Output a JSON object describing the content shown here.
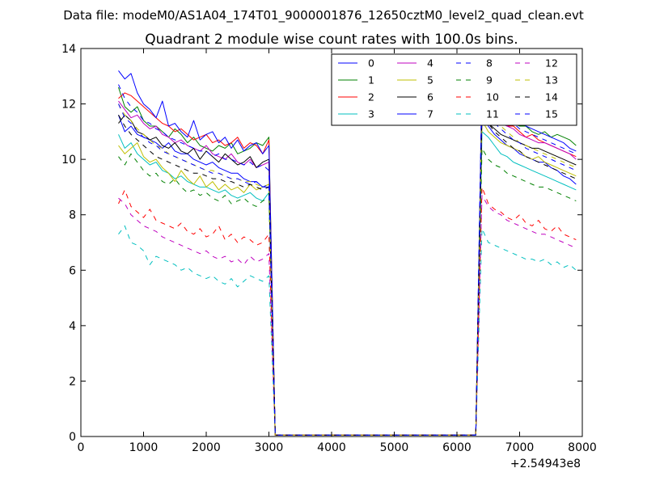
{
  "chart_data": {
    "type": "line",
    "suptitle": "Data file: modeM0/AS1A04_174T01_9000001876_12650cztM0_level2_quad_clean.evt",
    "title": "Quadrant 2 module wise count rates with 100.0s bins.",
    "xlabel": "",
    "ylabel": "",
    "xlim": [
      0,
      8000
    ],
    "ylim": [
      0,
      14
    ],
    "x_offset_label": "+2.54943e8",
    "xticks": [
      0,
      1000,
      2000,
      3000,
      4000,
      5000,
      6000,
      7000,
      8000
    ],
    "xtick_labels": [
      "0",
      "1000",
      "2000",
      "3000",
      "4000",
      "5000",
      "6000",
      "7000",
      "8000"
    ],
    "yticks": [
      0,
      2,
      4,
      6,
      8,
      10,
      12,
      14
    ],
    "ytick_labels": [
      "0",
      "2",
      "4",
      "6",
      "8",
      "10",
      "12",
      "14"
    ],
    "grid": false,
    "legend_position": "top-right",
    "x_segments": [
      {
        "start": 600,
        "end": 3000
      },
      {
        "start": 3100,
        "end": 6300
      },
      {
        "start": 6400,
        "end": 7900
      }
    ],
    "series": [
      {
        "name": "0",
        "color": "#0000ff",
        "dash": "solid",
        "seg1": [
          11.6,
          11.0,
          11.2,
          10.9,
          10.8,
          10.7,
          10.6,
          10.4,
          10.6,
          10.3,
          10.2,
          10.2,
          10.0,
          9.9,
          9.8,
          9.9,
          9.7,
          9.6,
          9.5,
          9.5,
          9.3,
          9.2,
          9.2,
          9.0,
          9.0
        ],
        "drop": 0.05,
        "seg3": [
          11.8,
          11.2,
          10.9,
          10.7,
          10.5,
          10.4,
          10.2,
          10.1,
          10.0,
          9.9,
          9.9,
          9.7,
          9.6,
          9.4,
          9.3,
          9.1
        ]
      },
      {
        "name": "1",
        "color": "#008000",
        "dash": "solid",
        "seg1": [
          12.6,
          11.9,
          11.7,
          11.9,
          11.4,
          11.2,
          11.2,
          11.0,
          10.8,
          11.1,
          10.9,
          10.6,
          10.8,
          10.5,
          10.4,
          10.3,
          10.5,
          10.4,
          10.6,
          10.2,
          10.3,
          10.4,
          10.6,
          10.5,
          10.8
        ],
        "drop": 0.05,
        "seg3": [
          12.5,
          12.0,
          11.8,
          11.6,
          11.4,
          11.3,
          11.2,
          11.2,
          11.0,
          10.9,
          11.0,
          10.8,
          10.9,
          10.8,
          10.7,
          10.5
        ]
      },
      {
        "name": "2",
        "color": "#ff0000",
        "dash": "solid",
        "seg1": [
          12.2,
          12.4,
          12.3,
          12.1,
          11.9,
          11.7,
          11.5,
          11.3,
          11.2,
          11.0,
          11.1,
          10.9,
          10.7,
          10.8,
          10.9,
          10.6,
          10.7,
          10.5,
          10.6,
          10.8,
          10.4,
          10.6,
          10.5,
          10.2,
          10.7
        ],
        "drop": 0.05,
        "seg3": [
          12.3,
          11.8,
          11.6,
          11.5,
          11.2,
          11.2,
          11.0,
          10.8,
          10.9,
          10.7,
          10.6,
          10.5,
          10.4,
          10.3,
          10.2,
          10.1
        ]
      },
      {
        "name": "3",
        "color": "#00bfbf",
        "dash": "solid",
        "seg1": [
          10.9,
          10.4,
          10.6,
          10.2,
          10.0,
          9.8,
          9.9,
          9.6,
          9.5,
          9.3,
          9.4,
          9.2,
          9.1,
          9.0,
          9.0,
          8.9,
          8.8,
          8.9,
          8.7,
          8.6,
          8.7,
          8.8,
          8.6,
          8.5,
          8.8
        ],
        "drop": 0.05,
        "seg3": [
          11.0,
          10.8,
          10.5,
          10.2,
          10.1,
          9.9,
          9.8,
          9.7,
          9.6,
          9.5,
          9.4,
          9.3,
          9.2,
          9.1,
          9.0,
          8.9
        ]
      },
      {
        "name": "4",
        "color": "#bf00bf",
        "dash": "solid",
        "seg1": [
          12.1,
          11.8,
          11.5,
          11.6,
          11.3,
          11.1,
          11.2,
          10.9,
          10.8,
          10.6,
          10.7,
          10.5,
          10.4,
          10.3,
          10.5,
          10.2,
          10.1,
          10.0,
          10.2,
          9.9,
          9.8,
          10.0,
          9.7,
          9.8,
          9.9
        ],
        "drop": 0.05,
        "seg3": [
          12.1,
          11.7,
          11.5,
          11.3,
          11.2,
          11.1,
          10.9,
          10.8,
          10.7,
          10.6,
          10.6,
          10.5,
          10.4,
          10.3,
          10.2,
          10.0
        ]
      },
      {
        "name": "5",
        "color": "#bfbf00",
        "dash": "solid",
        "seg1": [
          10.5,
          10.2,
          10.4,
          10.6,
          10.1,
          9.9,
          10.0,
          9.7,
          9.5,
          9.2,
          9.6,
          9.3,
          9.1,
          9.4,
          9.0,
          9.2,
          8.9,
          9.1,
          8.9,
          9.0,
          8.8,
          9.1,
          8.9,
          9.0,
          9.1
        ],
        "drop": 0.05,
        "seg3": [
          11.4,
          11.0,
          10.8,
          10.6,
          10.5,
          10.4,
          10.3,
          10.1,
          10.0,
          10.1,
          9.9,
          9.8,
          9.7,
          9.6,
          9.5,
          9.4
        ]
      },
      {
        "name": "6",
        "color": "#000000",
        "dash": "solid",
        "seg1": [
          11.3,
          11.6,
          11.4,
          11.0,
          10.9,
          10.7,
          10.8,
          10.5,
          10.4,
          10.6,
          10.3,
          10.2,
          10.4,
          10.0,
          10.3,
          10.1,
          9.9,
          10.2,
          10.0,
          9.8,
          9.9,
          10.1,
          9.7,
          9.9,
          10.0
        ],
        "drop": 0.05,
        "seg3": [
          11.7,
          11.3,
          11.1,
          10.9,
          10.8,
          10.7,
          10.6,
          10.5,
          10.4,
          10.4,
          10.3,
          10.2,
          10.1,
          10.0,
          9.9,
          9.8
        ]
      },
      {
        "name": "7",
        "color": "#0000ff",
        "dash": "solid",
        "seg1": [
          13.2,
          12.9,
          13.1,
          12.4,
          12.0,
          11.8,
          11.5,
          12.1,
          11.2,
          11.3,
          11.0,
          10.8,
          11.4,
          10.7,
          10.9,
          11.0,
          10.6,
          10.8,
          10.4,
          10.7,
          10.3,
          10.5,
          10.6,
          10.2,
          10.5
        ],
        "drop": 0.05,
        "seg3": [
          13.0,
          12.4,
          12.0,
          11.8,
          11.6,
          11.5,
          11.4,
          11.2,
          11.1,
          11.0,
          10.9,
          10.8,
          10.7,
          10.6,
          10.4,
          10.3
        ]
      },
      {
        "name": "8",
        "color": "#0000ff",
        "dash": "dashed",
        "seg1": [
          12.7,
          12.2,
          11.9,
          11.7,
          11.4,
          11.3,
          11.1,
          11.0,
          10.8,
          10.7,
          10.6,
          10.5,
          10.4,
          10.3,
          10.3,
          10.1,
          10.2,
          10.0,
          10.0,
          9.9,
          9.8,
          9.9,
          9.7,
          9.8,
          9.6
        ],
        "drop": 0.05,
        "seg3": [
          13.0,
          12.2,
          11.8,
          11.6,
          11.4,
          11.3,
          11.1,
          11.0,
          10.9,
          10.8,
          10.7,
          10.6,
          10.5,
          10.4,
          10.3,
          10.2
        ]
      },
      {
        "name": "9",
        "color": "#008000",
        "dash": "dashed",
        "seg1": [
          10.1,
          9.8,
          10.2,
          9.9,
          9.6,
          9.4,
          9.5,
          9.2,
          9.1,
          9.3,
          9.0,
          8.8,
          8.9,
          8.7,
          8.8,
          8.6,
          8.5,
          8.7,
          8.4,
          8.5,
          8.6,
          8.4,
          8.3,
          8.5,
          8.6
        ],
        "drop": 0.05,
        "seg3": [
          10.4,
          10.0,
          9.8,
          9.7,
          9.5,
          9.4,
          9.3,
          9.2,
          9.1,
          9.0,
          9.0,
          8.9,
          8.8,
          8.7,
          8.6,
          8.5
        ]
      },
      {
        "name": "10",
        "color": "#ff0000",
        "dash": "dashed",
        "seg1": [
          8.4,
          8.9,
          8.3,
          8.1,
          7.9,
          8.2,
          7.8,
          7.7,
          7.6,
          7.5,
          7.7,
          7.4,
          7.3,
          7.5,
          7.2,
          7.3,
          7.6,
          7.1,
          7.3,
          7.0,
          7.2,
          7.1,
          6.9,
          7.0,
          7.3
        ],
        "drop": 0.05,
        "seg3": [
          9.0,
          8.4,
          8.2,
          8.1,
          7.9,
          7.8,
          8.0,
          7.7,
          7.6,
          7.8,
          7.5,
          7.4,
          7.6,
          7.3,
          7.2,
          7.1
        ]
      },
      {
        "name": "11",
        "color": "#00bfbf",
        "dash": "dashed",
        "seg1": [
          7.3,
          7.6,
          7.0,
          6.9,
          6.7,
          6.2,
          6.5,
          6.4,
          6.3,
          6.2,
          6.0,
          6.1,
          5.9,
          5.8,
          5.7,
          5.8,
          5.6,
          5.5,
          5.7,
          5.4,
          5.6,
          5.8,
          5.7,
          5.6,
          5.8
        ],
        "drop": 0.05,
        "seg3": [
          7.5,
          7.0,
          6.9,
          6.8,
          6.7,
          6.6,
          6.5,
          6.4,
          6.4,
          6.3,
          6.4,
          6.2,
          6.3,
          6.1,
          6.2,
          6.0
        ]
      },
      {
        "name": "12",
        "color": "#bf00bf",
        "dash": "dashed",
        "seg1": [
          8.6,
          8.4,
          8.0,
          7.8,
          7.6,
          7.5,
          7.4,
          7.2,
          7.1,
          7.0,
          6.9,
          6.8,
          6.7,
          6.6,
          6.7,
          6.5,
          6.4,
          6.5,
          6.3,
          6.4,
          6.2,
          6.5,
          6.3,
          6.4,
          6.6
        ],
        "drop": 0.05,
        "seg3": [
          8.7,
          8.3,
          8.1,
          8.0,
          7.8,
          7.7,
          7.6,
          7.5,
          7.4,
          7.3,
          7.3,
          7.2,
          7.1,
          7.0,
          6.9,
          6.8
        ]
      },
      {
        "name": "13",
        "color": "#bfbf00",
        "dash": "dashed",
        "seg1": [
          12.0,
          11.6,
          11.4,
          11.1,
          10.9,
          10.7,
          10.5,
          10.4,
          10.2,
          10.1,
          10.0,
          9.9,
          9.8,
          9.7,
          9.6,
          9.6,
          9.5,
          9.4,
          9.3,
          9.3,
          9.2,
          9.2,
          9.1,
          9.0,
          9.1
        ],
        "drop": 0.05,
        "seg3": [
          12.3,
          11.7,
          11.4,
          11.2,
          11.0,
          10.8,
          10.6,
          10.5,
          10.4,
          10.3,
          10.2,
          10.1,
          10.0,
          9.9,
          9.8,
          9.7
        ]
      },
      {
        "name": "14",
        "color": "#000000",
        "dash": "dashed",
        "seg1": [
          11.6,
          11.2,
          10.9,
          10.7,
          10.5,
          10.3,
          10.1,
          10.0,
          9.9,
          9.8,
          9.7,
          9.6,
          9.5,
          9.5,
          9.4,
          9.3,
          9.3,
          9.2,
          9.2,
          9.1,
          9.0,
          9.1,
          9.0,
          8.9,
          9.0
        ],
        "drop": 0.05,
        "seg3": [
          11.8,
          11.3,
          11.0,
          10.8,
          10.6,
          10.4,
          10.3,
          10.1,
          10.0,
          9.9,
          9.8,
          9.7,
          9.6,
          9.5,
          9.4,
          9.3
        ]
      },
      {
        "name": "15",
        "color": "#0000ff",
        "dash": "dashed",
        "seg1": [
          12.0,
          11.5,
          11.3,
          11.0,
          10.8,
          10.6,
          10.5,
          10.3,
          10.2,
          10.1,
          10.0,
          9.9,
          9.8,
          9.7,
          9.6,
          9.5,
          9.5,
          9.4,
          9.3,
          9.3,
          9.2,
          9.1,
          9.2,
          9.0,
          9.1
        ],
        "drop": 0.05,
        "seg3": [
          12.2,
          11.6,
          11.3,
          11.1,
          10.9,
          10.7,
          10.6,
          10.4,
          10.3,
          10.2,
          10.1,
          10.0,
          9.9,
          9.8,
          9.7,
          9.6
        ]
      }
    ]
  }
}
